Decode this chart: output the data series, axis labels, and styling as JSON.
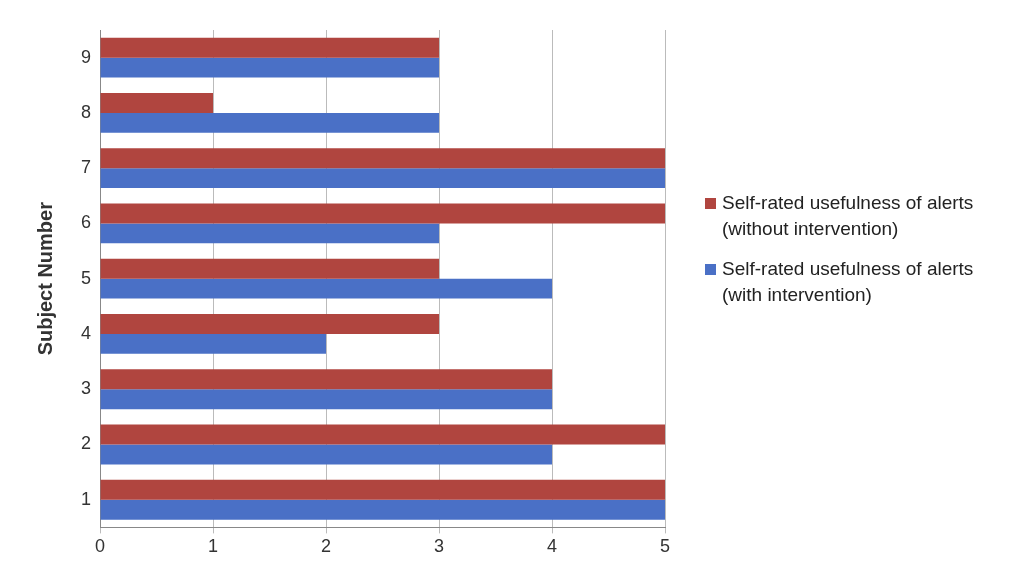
{
  "chart_data": {
    "type": "bar",
    "orientation": "horizontal",
    "ylabel": "Subject Number",
    "categories": [
      "9",
      "8",
      "7",
      "6",
      "5",
      "4",
      "3",
      "2",
      "1"
    ],
    "series": [
      {
        "name": "Self-rated usefulness of alerts (without intervention)",
        "color": "#b0453f",
        "values": [
          3,
          1,
          5,
          5,
          3,
          3,
          4,
          5,
          5
        ]
      },
      {
        "name": "Self-rated usefulness of alerts (with intervention)",
        "color": "#4a70c6",
        "values": [
          3,
          3,
          5,
          3,
          4,
          2,
          4,
          4,
          5
        ]
      }
    ],
    "xlim": [
      0,
      5
    ],
    "xticks": [
      0,
      1,
      2,
      3,
      4,
      5
    ],
    "grid": "x",
    "legend": "right"
  }
}
